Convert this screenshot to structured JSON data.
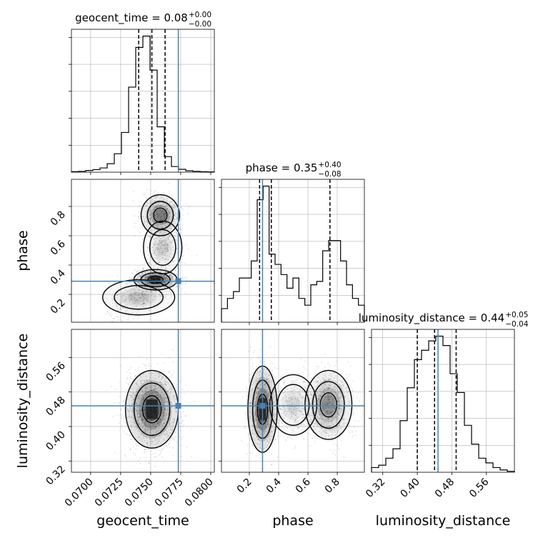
{
  "chart_data": {
    "type": "corner",
    "parameters": [
      "geocent_time",
      "phase",
      "luminosity_distance"
    ],
    "titles": [
      {
        "name": "geocent_time",
        "value": "0.08",
        "plus": "+0.00",
        "minus": "−0.00"
      },
      {
        "name": "phase",
        "value": "0.35",
        "plus": "+0.40",
        "minus": "−0.08"
      },
      {
        "name": "luminosity_distance",
        "value": "0.44",
        "plus": "+0.05",
        "minus": "−0.04"
      }
    ],
    "axis_labels": {
      "geocent_time": "geocent_time",
      "phase": "phase",
      "luminosity_distance": "luminosity_distance"
    },
    "ranges": {
      "geocent_time": [
        0.0684,
        0.0803
      ],
      "phase": [
        0.01,
        0.985
      ],
      "luminosity_distance": [
        0.294,
        0.625
      ]
    },
    "ticks": {
      "geocent_time": [
        "0.0700",
        "0.0725",
        "0.0750",
        "0.0775",
        "0.0800"
      ],
      "phase": [
        "0.2",
        "0.4",
        "0.6",
        "0.8"
      ],
      "luminosity_distance": [
        "0.32",
        "0.40",
        "0.48",
        "0.56"
      ]
    },
    "truths": {
      "geocent_time": 0.0773,
      "phase": 0.29,
      "luminosity_distance": 0.448
    },
    "quantiles": {
      "geocent_time": [
        0.074,
        0.0751,
        0.0762
      ],
      "phase": [
        0.27,
        0.35,
        0.75
      ],
      "luminosity_distance": [
        0.4,
        0.44,
        0.49
      ]
    },
    "hist_1d": {
      "geocent_time": [
        0.2,
        0.3,
        0.6,
        0.9,
        1.5,
        3.0,
        6.5,
        14.0,
        30.0,
        44.0,
        48.0,
        36.0,
        16.0,
        5.5,
        2.0,
        1.0,
        0.5,
        0.3,
        0.15,
        0.1
      ],
      "phase": [
        0.4,
        0.7,
        0.9,
        1.3,
        1.3,
        1.8,
        3.6,
        4.0,
        2.0,
        1.7,
        1.4,
        1.0,
        1.3,
        0.7,
        0.5,
        1.1,
        1.2,
        2.1,
        2.4,
        2.4,
        1.8,
        1.1,
        0.7,
        0.5
      ],
      "luminosity_distance": [
        0.1,
        0.15,
        0.3,
        0.5,
        1.1,
        1.8,
        2.4,
        2.6,
        2.8,
        2.9,
        2.7,
        2.1,
        1.7,
        1.0,
        0.6,
        0.3,
        0.2,
        0.1,
        0.05,
        0.02
      ]
    },
    "grid": true
  }
}
